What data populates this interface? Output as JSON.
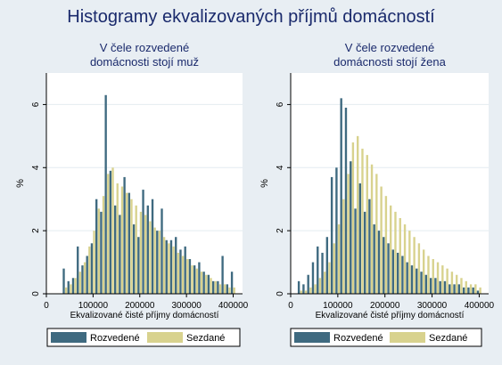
{
  "figure": {
    "title": "Histogramy ekvalizovaných příjmů domácností"
  },
  "colors": {
    "background": "#e8eef3",
    "plot_bg": "#ffffff",
    "rozvedene": "#3f6a80",
    "sezdane": "#d8d28e",
    "title_color": "#1a2a6c",
    "grid": "#e4ecf0"
  },
  "chart_data": [
    {
      "type": "bar",
      "title": "V čele rozvedené\ndomácnosti stojí muž",
      "title_lines": [
        "V čele rozvedené",
        "domácnosti stojí muž"
      ],
      "xlabel": "Ekvalizované čisté příjmy domácností",
      "ylabel": "%",
      "xlim": [
        0,
        420000
      ],
      "ylim": [
        0,
        7
      ],
      "xticks": [
        0,
        100000,
        200000,
        300000,
        400000
      ],
      "xtick_labels": [
        "0",
        "100000",
        "200000",
        "300000",
        "400000"
      ],
      "yticks": [
        0,
        2,
        4,
        6
      ],
      "ytick_labels": [
        "0",
        "2",
        "4",
        "6"
      ],
      "grid": true,
      "legend": {
        "position": "bottom",
        "entries": [
          "Rozvedené",
          "Sezdané"
        ]
      },
      "series": [
        {
          "name": "Rozvedené",
          "x": [
            40000,
            50000,
            60000,
            70000,
            80000,
            90000,
            100000,
            110000,
            120000,
            130000,
            140000,
            150000,
            160000,
            170000,
            180000,
            190000,
            200000,
            210000,
            220000,
            230000,
            240000,
            250000,
            260000,
            270000,
            280000,
            290000,
            300000,
            310000,
            320000,
            330000,
            340000,
            350000,
            360000,
            370000,
            380000,
            390000,
            400000
          ],
          "values": [
            0.8,
            0.4,
            0.5,
            1.5,
            0.9,
            1.2,
            1.6,
            3.0,
            2.6,
            6.3,
            3.9,
            2.8,
            2.5,
            3.7,
            3.2,
            2.2,
            1.8,
            3.3,
            2.8,
            3.0,
            2.0,
            2.7,
            1.7,
            1.7,
            1.8,
            1.4,
            1.5,
            1.1,
            0.9,
            1.0,
            0.7,
            0.6,
            0.4,
            0.4,
            1.2,
            0.3,
            0.7
          ]
        },
        {
          "name": "Sezdané",
          "x": [
            40000,
            50000,
            60000,
            70000,
            80000,
            90000,
            100000,
            110000,
            120000,
            130000,
            140000,
            150000,
            160000,
            170000,
            180000,
            190000,
            200000,
            210000,
            220000,
            230000,
            240000,
            250000,
            260000,
            270000,
            280000,
            290000,
            300000,
            310000,
            320000,
            330000,
            340000,
            350000,
            360000,
            370000,
            380000,
            390000,
            400000
          ],
          "values": [
            0.2,
            0.3,
            0.5,
            0.7,
            1.0,
            1.5,
            2.0,
            2.7,
            3.1,
            3.8,
            4.0,
            3.5,
            3.4,
            3.2,
            3.0,
            2.8,
            2.6,
            2.5,
            2.3,
            2.1,
            2.0,
            1.8,
            1.6,
            1.5,
            1.3,
            1.2,
            1.1,
            0.9,
            0.8,
            0.7,
            0.6,
            0.5,
            0.4,
            0.3,
            0.3,
            0.2,
            0.2
          ]
        }
      ]
    },
    {
      "type": "bar",
      "title": "V čele rozvedené\ndomácnosti stojí žena",
      "title_lines": [
        "V čele rozvedené",
        "domácnosti stojí žena"
      ],
      "xlabel": "Ekvalizované čisté příjmy domácností",
      "ylabel": "%",
      "xlim": [
        0,
        420000
      ],
      "ylim": [
        0,
        7
      ],
      "xticks": [
        0,
        100000,
        200000,
        300000,
        400000
      ],
      "xtick_labels": [
        "0",
        "100000",
        "200000",
        "300000",
        "400000"
      ],
      "yticks": [
        0,
        2,
        4,
        6
      ],
      "ytick_labels": [
        "0",
        "2",
        "4",
        "6"
      ],
      "grid": true,
      "legend": {
        "position": "bottom",
        "entries": [
          "Rozvedené",
          "Sezdané"
        ]
      },
      "series": [
        {
          "name": "Rozvedené",
          "x": [
            20000,
            30000,
            40000,
            50000,
            60000,
            70000,
            80000,
            90000,
            100000,
            110000,
            120000,
            130000,
            140000,
            150000,
            160000,
            170000,
            180000,
            190000,
            200000,
            210000,
            220000,
            230000,
            240000,
            250000,
            260000,
            270000,
            280000,
            290000,
            300000,
            310000,
            320000,
            330000,
            340000,
            350000,
            360000,
            370000,
            380000,
            390000,
            400000
          ],
          "values": [
            0.4,
            0.3,
            0.6,
            1.0,
            1.5,
            1.3,
            1.8,
            3.7,
            4.0,
            6.2,
            5.9,
            4.2,
            2.7,
            3.5,
            2.6,
            3.0,
            2.2,
            2.0,
            1.8,
            1.6,
            1.4,
            1.3,
            1.2,
            1.0,
            0.9,
            0.8,
            0.7,
            0.6,
            0.5,
            0.5,
            0.4,
            0.4,
            0.3,
            0.3,
            0.3,
            0.2,
            0.2,
            0.2,
            0.1
          ]
        },
        {
          "name": "Sezdané",
          "x": [
            20000,
            30000,
            40000,
            50000,
            60000,
            70000,
            80000,
            90000,
            100000,
            110000,
            120000,
            130000,
            140000,
            150000,
            160000,
            170000,
            180000,
            190000,
            200000,
            210000,
            220000,
            230000,
            240000,
            250000,
            260000,
            270000,
            280000,
            290000,
            300000,
            310000,
            320000,
            330000,
            340000,
            350000,
            360000,
            370000,
            380000,
            390000,
            400000
          ],
          "values": [
            0.1,
            0.1,
            0.2,
            0.3,
            0.5,
            0.7,
            1.0,
            1.6,
            2.2,
            3.0,
            3.8,
            4.8,
            5.0,
            4.6,
            4.4,
            4.1,
            3.8,
            3.4,
            3.1,
            2.8,
            2.6,
            2.4,
            2.2,
            2.0,
            1.8,
            1.6,
            1.4,
            1.2,
            1.1,
            1.0,
            0.9,
            0.8,
            0.7,
            0.6,
            0.5,
            0.4,
            0.3,
            0.3,
            0.2
          ]
        }
      ]
    }
  ]
}
